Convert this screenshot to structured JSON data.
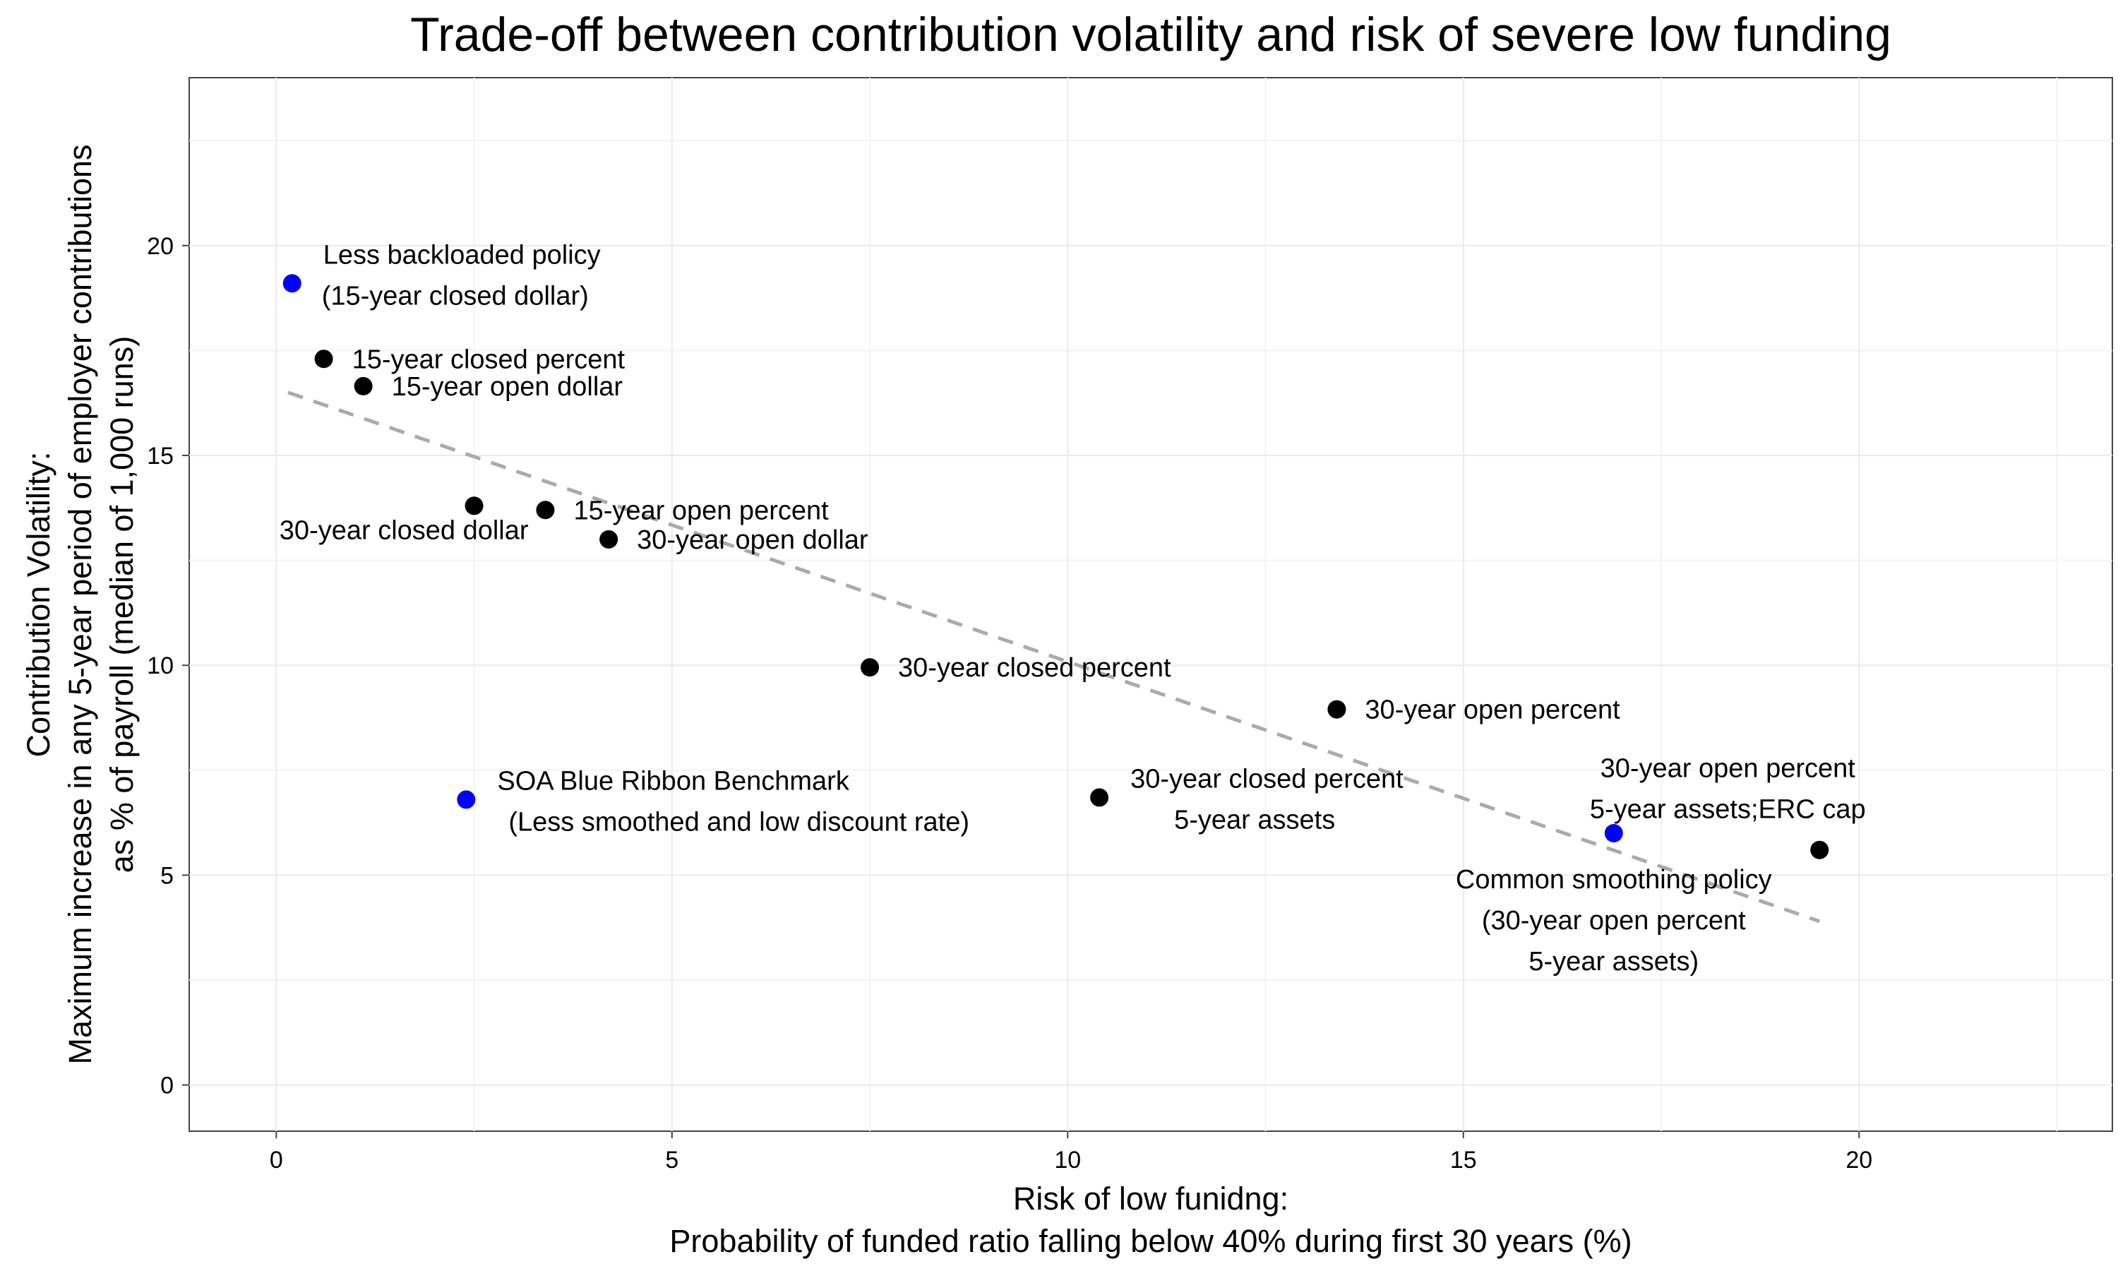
{
  "chart_data": {
    "type": "scatter",
    "title": "Trade-off between contribution volatility and risk of severe low funding",
    "xlabel": [
      "Risk of low funidng:",
      "Probability of funded ratio falling below 40% during first 30 years (%)"
    ],
    "ylabel": [
      "Contribution Volatility:",
      "Maximum increase in any 5-year period of employer contributions",
      "as % of payroll (median of 1,000 runs)"
    ],
    "xlim": [
      -1.1,
      23.2
    ],
    "ylim": [
      -1.1,
      24.0
    ],
    "x_ticks": [
      0,
      5,
      10,
      15,
      20
    ],
    "y_ticks": [
      0,
      5,
      10,
      15,
      20
    ],
    "x_tick_labels": [
      "0",
      "5",
      "10",
      "15",
      "20"
    ],
    "y_tick_labels": [
      "0",
      "5",
      "10",
      "15",
      "20"
    ],
    "grid": true,
    "legend": "none",
    "colors": {
      "highlight": "#0000ff",
      "standard": "#000000",
      "trend": "#aaaaaa"
    },
    "points": [
      {
        "x": 0.2,
        "y": 19.1,
        "color": "#0000ff",
        "label": [
          "Less backloaded policy",
          "(15-year closed dollar)"
        ],
        "label_pos": "right-stack"
      },
      {
        "x": 0.6,
        "y": 17.3,
        "color": "#000000",
        "label": [
          "15-year closed percent"
        ],
        "label_pos": "right"
      },
      {
        "x": 1.1,
        "y": 16.65,
        "color": "#000000",
        "label": [
          "15-year open dollar"
        ],
        "label_pos": "right"
      },
      {
        "x": 2.5,
        "y": 13.8,
        "color": "#000000",
        "label": [
          "30-year closed dollar"
        ],
        "label_pos": "below-left"
      },
      {
        "x": 3.4,
        "y": 13.7,
        "color": "#000000",
        "label": [
          "15-year open percent"
        ],
        "label_pos": "right"
      },
      {
        "x": 4.2,
        "y": 13.0,
        "color": "#000000",
        "label": [
          "30-year open dollar"
        ],
        "label_pos": "right"
      },
      {
        "x": 7.5,
        "y": 9.95,
        "color": "#000000",
        "label": [
          "30-year closed percent"
        ],
        "label_pos": "right"
      },
      {
        "x": 13.4,
        "y": 8.95,
        "color": "#000000",
        "label": [
          "30-year open percent"
        ],
        "label_pos": "right"
      },
      {
        "x": 2.4,
        "y": 6.8,
        "color": "#0000ff",
        "label": [
          "SOA Blue Ribbon Benchmark",
          "(Less smoothed and low discount rate)"
        ],
        "label_pos": "right-stack"
      },
      {
        "x": 10.4,
        "y": 6.85,
        "color": "#000000",
        "label": [
          "30-year closed percent",
          "5-year assets"
        ],
        "label_pos": "right-stack"
      },
      {
        "x": 16.9,
        "y": 6.0,
        "color": "#0000ff",
        "label": [
          "Common smoothing policy",
          "(30-year open percent",
          "5-year assets)"
        ],
        "label_pos": "below"
      },
      {
        "x": 19.5,
        "y": 5.6,
        "color": "#000000",
        "label": [
          "30-year open percent",
          "5-year assets;ERC cap"
        ],
        "label_pos": "above"
      }
    ],
    "trend_line": {
      "x": [
        0.15,
        19.5
      ],
      "y": [
        16.5,
        3.9
      ]
    }
  }
}
